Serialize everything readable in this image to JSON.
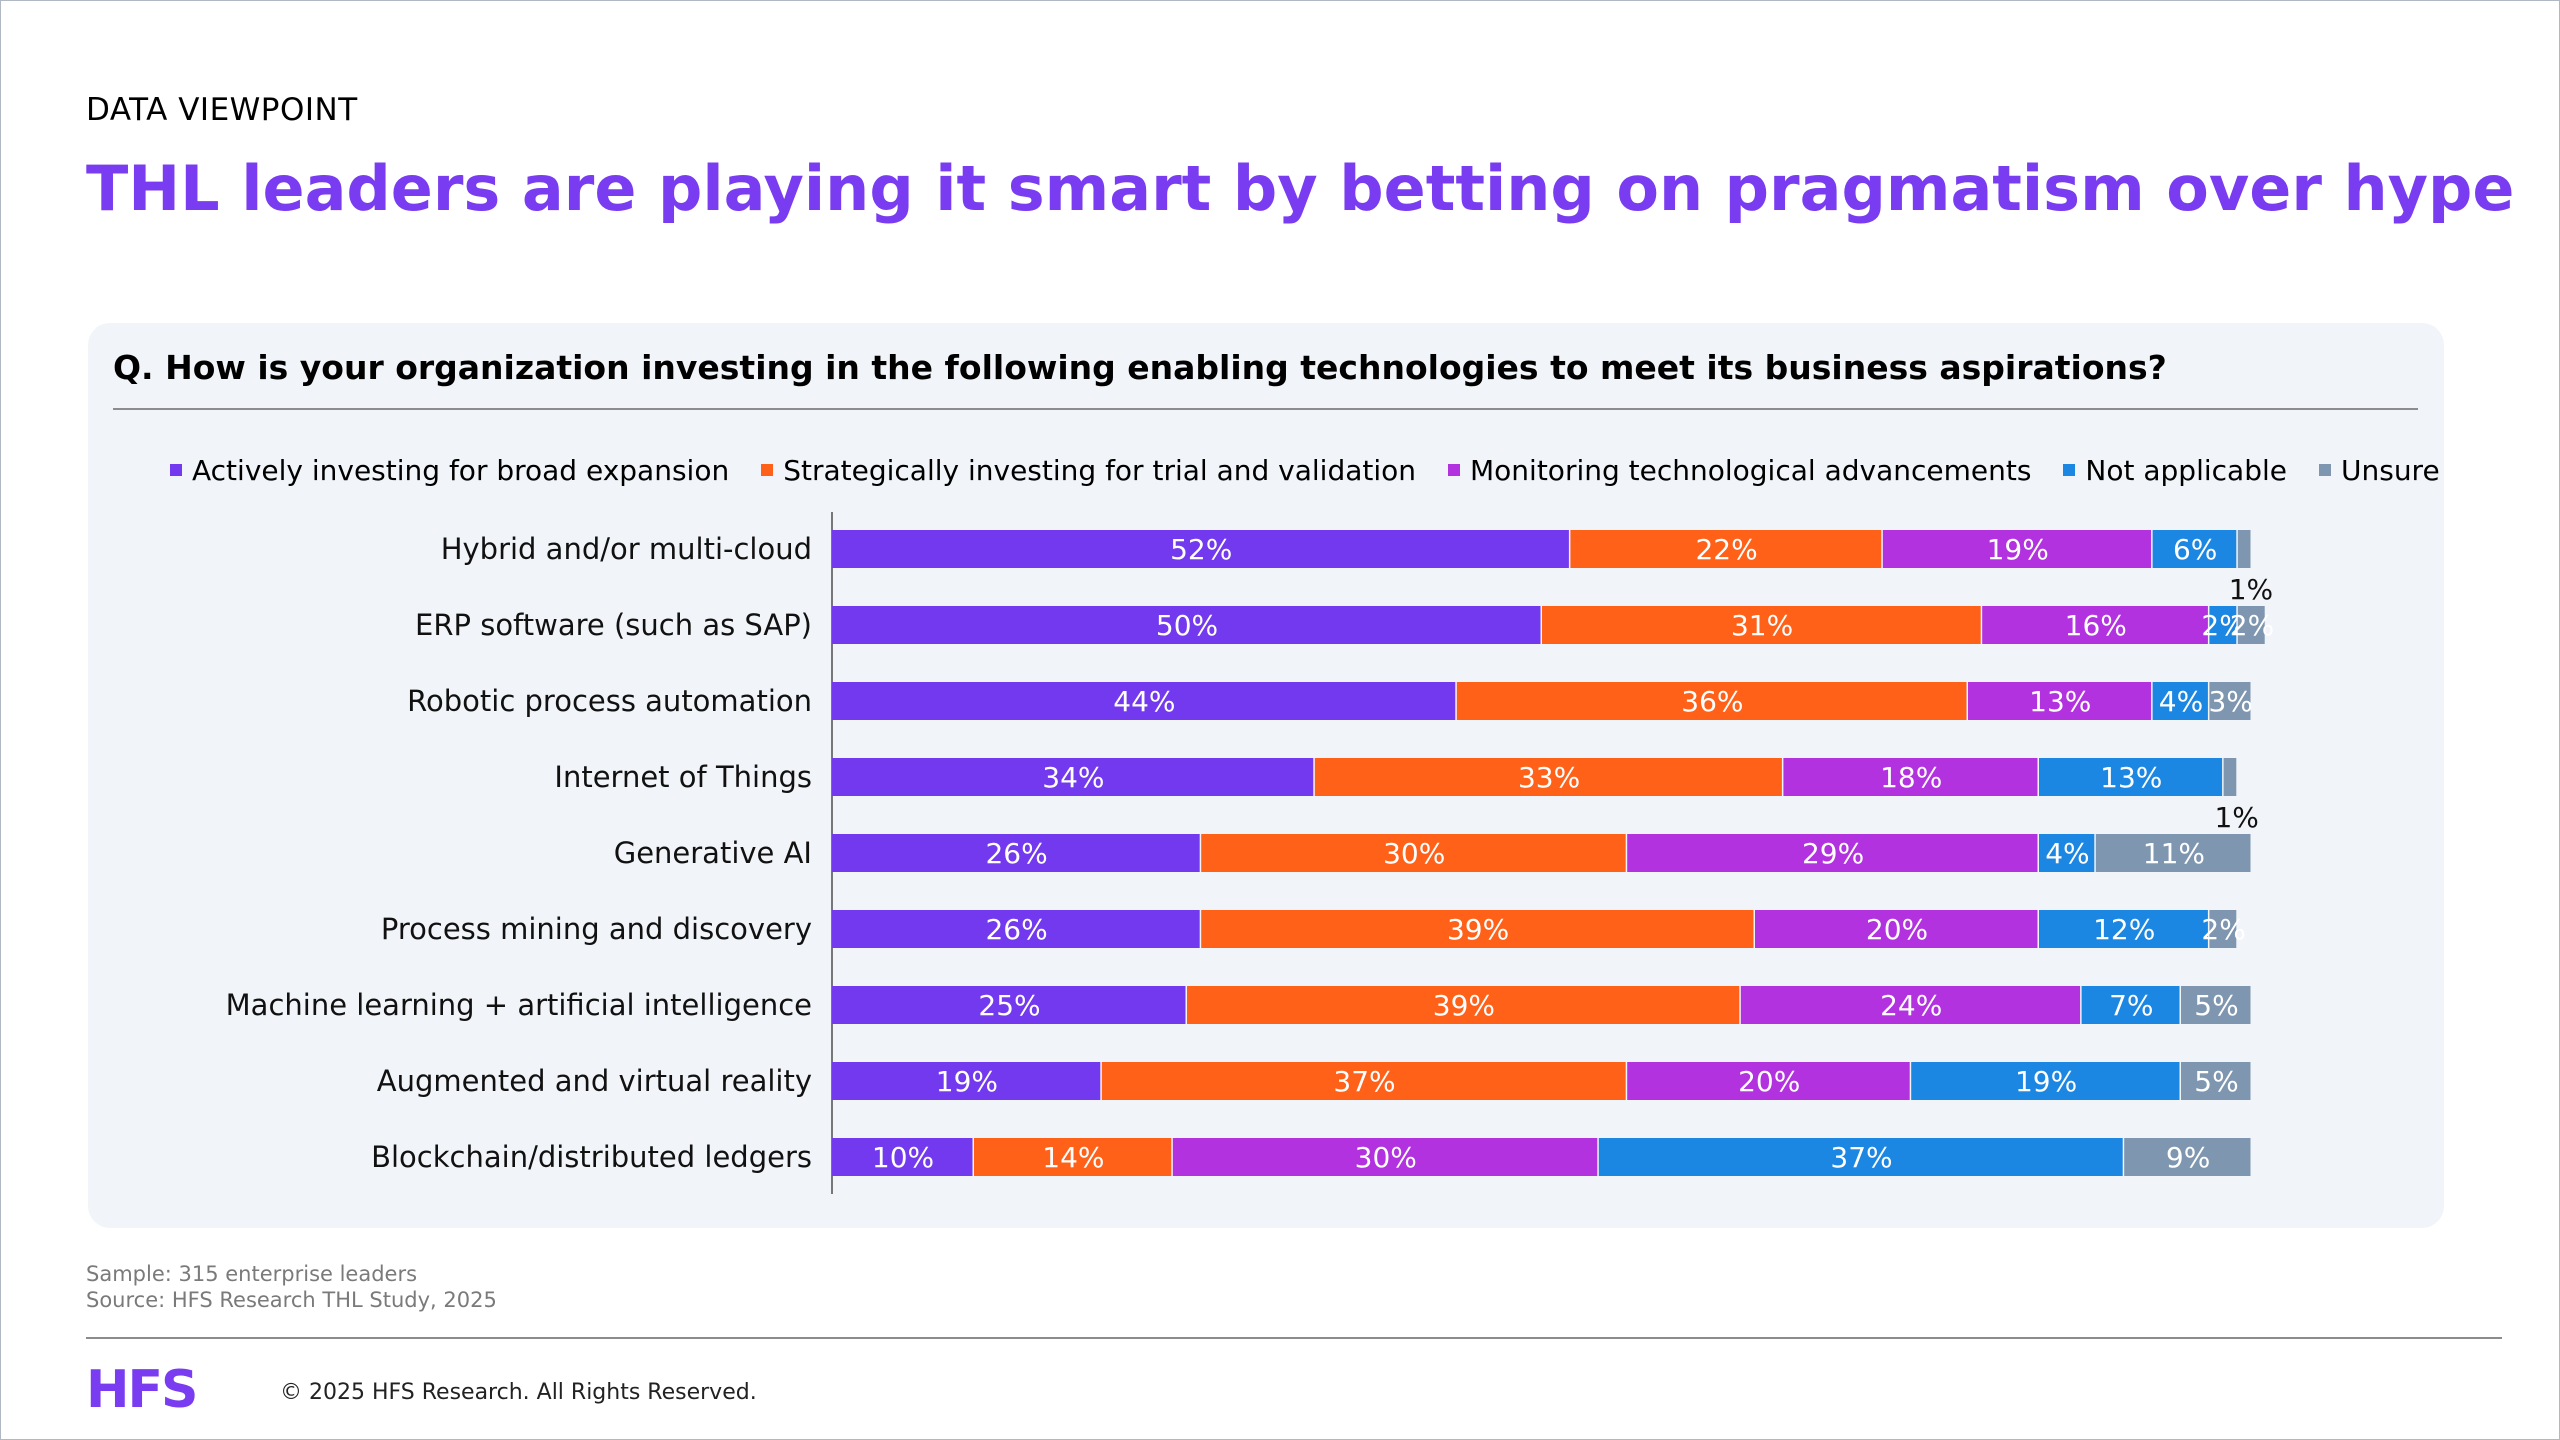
{
  "header": {
    "kicker": "DATA VIEWPOINT",
    "title": "THL leaders are playing it smart by betting on pragmatism over hype"
  },
  "question": "Q. How is your organization investing in the following enabling technologies to meet its business aspirations?",
  "chart_data": {
    "type": "bar",
    "orientation": "horizontal",
    "stacked": true,
    "unit": "%",
    "categories": [
      "Hybrid and/or multi-cloud",
      "ERP software (such as SAP)",
      "Robotic process automation",
      "Internet of Things",
      "Generative AI",
      "Process mining and discovery",
      "Machine learning + artificial intelligence",
      "Augmented and virtual reality",
      "Blockchain/distributed ledgers"
    ],
    "series": [
      {
        "name": "Actively investing for broad expansion",
        "color": "#7339ee",
        "values": [
          52,
          50,
          44,
          34,
          26,
          26,
          25,
          19,
          10
        ]
      },
      {
        "name": "Strategically investing for trial and validation",
        "color": "#ff6119",
        "values": [
          22,
          31,
          36,
          33,
          30,
          39,
          39,
          37,
          14
        ]
      },
      {
        "name": "Monitoring technological advancements",
        "color": "#b232e0",
        "values": [
          19,
          16,
          13,
          18,
          29,
          20,
          24,
          20,
          30
        ]
      },
      {
        "name": "Not applicable",
        "color": "#1c86e3",
        "values": [
          6,
          2,
          4,
          13,
          4,
          12,
          7,
          19,
          37
        ]
      },
      {
        "name": "Unsure",
        "color": "#7f96b0",
        "values": [
          1,
          2,
          3,
          1,
          11,
          2,
          5,
          5,
          9
        ]
      }
    ],
    "xlim": [
      0,
      100
    ],
    "legend_position": "top",
    "grid": false
  },
  "footer": {
    "sample": "Sample: 315 enterprise leaders",
    "source": "Source: HFS Research THL Study, 2025",
    "logo": "HFS",
    "copyright": "© 2025 HFS Research. All Rights Reserved."
  }
}
